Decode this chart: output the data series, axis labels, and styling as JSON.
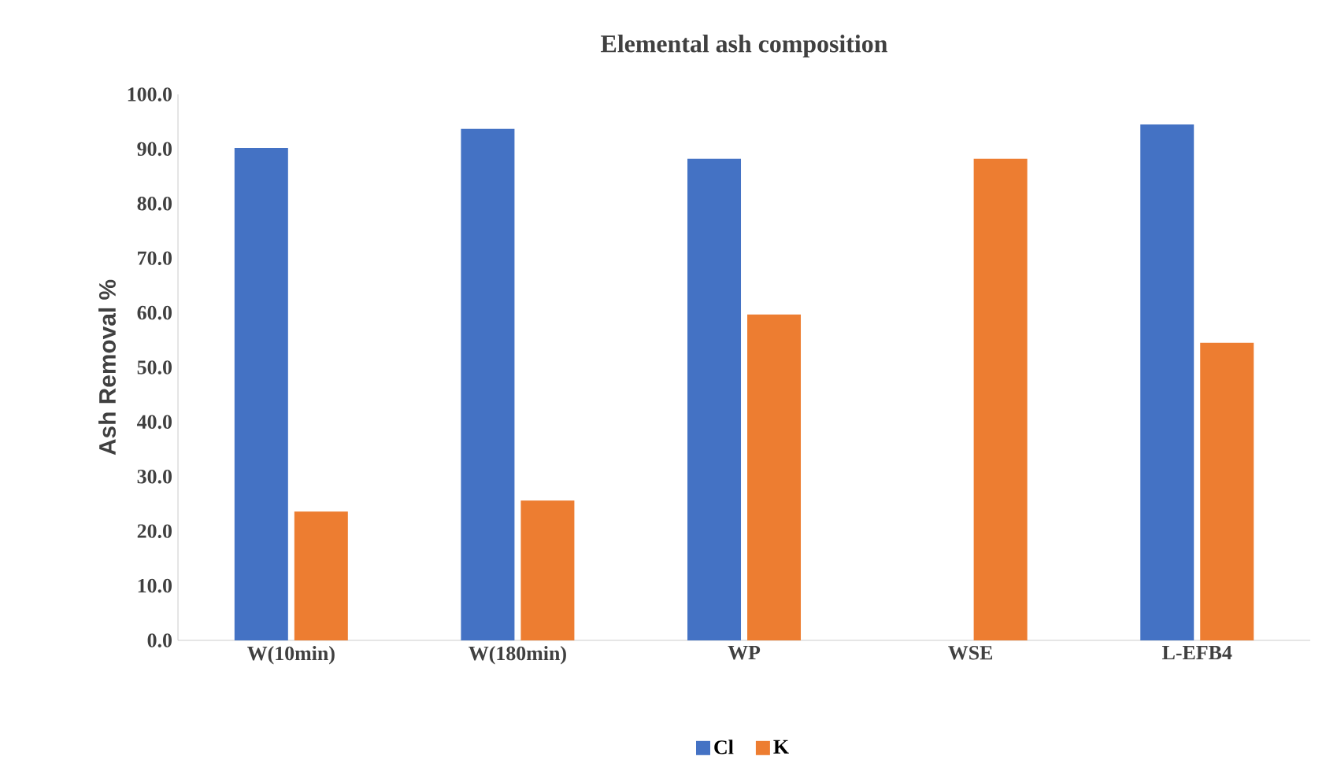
{
  "chart_data": {
    "type": "bar",
    "title": "Elemental ash composition",
    "ylabel": "Ash Removal %",
    "categories": [
      "W(10min)",
      "W(180min)",
      "WP",
      "WSE",
      "L-EFB4"
    ],
    "series": [
      {
        "name": "Cl",
        "color": "#4472c4",
        "values": [
          90.2,
          93.7,
          88.2,
          null,
          94.5
        ]
      },
      {
        "name": "K",
        "color": "#ed7d31",
        "values": [
          23.6,
          25.6,
          59.7,
          88.2,
          54.5
        ]
      }
    ],
    "ylim": [
      0,
      100
    ],
    "yticks": [
      {
        "value": 0,
        "label": "0.0"
      },
      {
        "value": 10,
        "label": "10.0"
      },
      {
        "value": 20,
        "label": "20.0"
      },
      {
        "value": 30,
        "label": "30.0"
      },
      {
        "value": 40,
        "label": "40.0"
      },
      {
        "value": 50,
        "label": "50.0"
      },
      {
        "value": 60,
        "label": "60.0"
      },
      {
        "value": 70,
        "label": "70.0"
      },
      {
        "value": 80,
        "label": "80.0"
      },
      {
        "value": 90,
        "label": "90.0"
      },
      {
        "value": 100,
        "label": "100.0"
      }
    ],
    "grid": false,
    "legend": "bottom"
  }
}
